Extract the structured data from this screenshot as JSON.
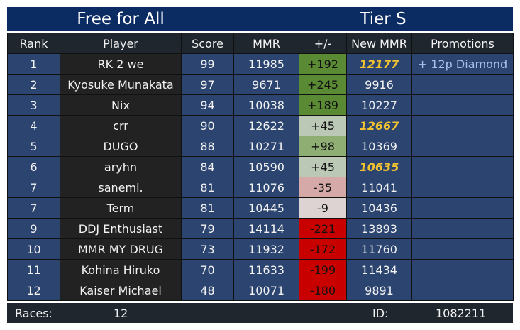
{
  "header": {
    "title_left": "Free for All",
    "title_right": "Tier S"
  },
  "table": {
    "columns": [
      "Rank",
      "Player",
      "Score",
      "MMR",
      "+/-",
      "New MMR",
      "Promotions"
    ],
    "rows": [
      [
        "1",
        "RK 2 we",
        "99",
        "11985",
        "+192",
        "12177",
        "+ 12p Diamond"
      ],
      [
        "2",
        "Kyosuke Munakata",
        "97",
        "9671",
        "+245",
        "9916"
      ],
      [
        "3",
        "Nix",
        "94",
        "10038",
        "+189",
        "10227"
      ],
      [
        "4",
        "crr",
        "90",
        "12622",
        "+45",
        "12667"
      ],
      [
        "5",
        "DUGO",
        "88",
        "10271",
        "+98",
        "10369"
      ],
      [
        "6",
        "aryhn",
        "84",
        "10590",
        "+45",
        "10635"
      ],
      [
        "7",
        "sanemi.",
        "81",
        "11076",
        "-35",
        "11041"
      ],
      [
        "7",
        "Term",
        "81",
        "10445",
        "-9",
        "10436"
      ],
      [
        "9",
        "DDJ Enthusiast",
        "79",
        "14114",
        "-221",
        "13893"
      ],
      [
        "10",
        "MMR MY DRUG",
        "73",
        "11932",
        "-172",
        "11760"
      ],
      [
        "11",
        "Kohina Hiruko",
        "70",
        "11633",
        "-199",
        "11434"
      ],
      [
        "12",
        "Kaiser Michael",
        "48",
        "10071",
        "-180",
        "9891"
      ]
    ]
  },
  "footer": {
    "races_label": "Races:",
    "races": "12",
    "id_label": "ID:",
    "id": "1082211"
  }
}
